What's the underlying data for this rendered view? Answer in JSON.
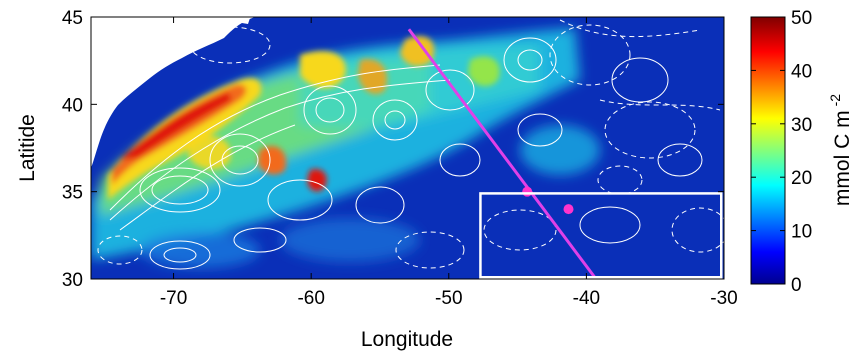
{
  "map": {
    "x_label": "Longitude",
    "y_label": "Latitide",
    "x_range": [
      -76,
      -30
    ],
    "y_range": [
      30,
      45
    ],
    "x_ticks": [
      {
        "value": -70,
        "label": "-70"
      },
      {
        "value": -60,
        "label": "-60"
      },
      {
        "value": -50,
        "label": "-50"
      },
      {
        "value": -40,
        "label": "-40"
      },
      {
        "value": -30,
        "label": "-30"
      }
    ],
    "y_ticks": [
      {
        "value": 30,
        "label": "30"
      },
      {
        "value": 35,
        "label": "35"
      },
      {
        "value": 40,
        "label": "40"
      },
      {
        "value": 45,
        "label": "45"
      }
    ],
    "colors": {
      "ocean_background": "#0a2fb8",
      "land": "#ffffff",
      "contours": "#ffffff",
      "transect_line": "#e040e8",
      "stations": "#ff33cc",
      "region_box": "#ffffff"
    },
    "transect": {
      "start": [
        -52.9,
        44.3
      ],
      "end": [
        -39.3,
        30.0
      ]
    },
    "stations": [
      {
        "lon": -44.3,
        "lat": 35.0
      },
      {
        "lon": -41.3,
        "lat": 34.0
      }
    ],
    "region_box": {
      "lon": [
        -47.7,
        -30.2
      ],
      "lat": [
        30.1,
        34.9
      ]
    }
  },
  "colorbar": {
    "unit_text": "mmol C m",
    "unit_superscript": "-2",
    "range": [
      0,
      50
    ],
    "ticks": [
      {
        "value": 0,
        "label": "0"
      },
      {
        "value": 10,
        "label": "10"
      },
      {
        "value": 20,
        "label": "20"
      },
      {
        "value": 30,
        "label": "30"
      },
      {
        "value": 40,
        "label": "40"
      },
      {
        "value": 50,
        "label": "50"
      }
    ],
    "colormap": [
      "#00008f",
      "#0000ff",
      "#00ffff",
      "#ffff00",
      "#ff0000",
      "#800000"
    ]
  }
}
